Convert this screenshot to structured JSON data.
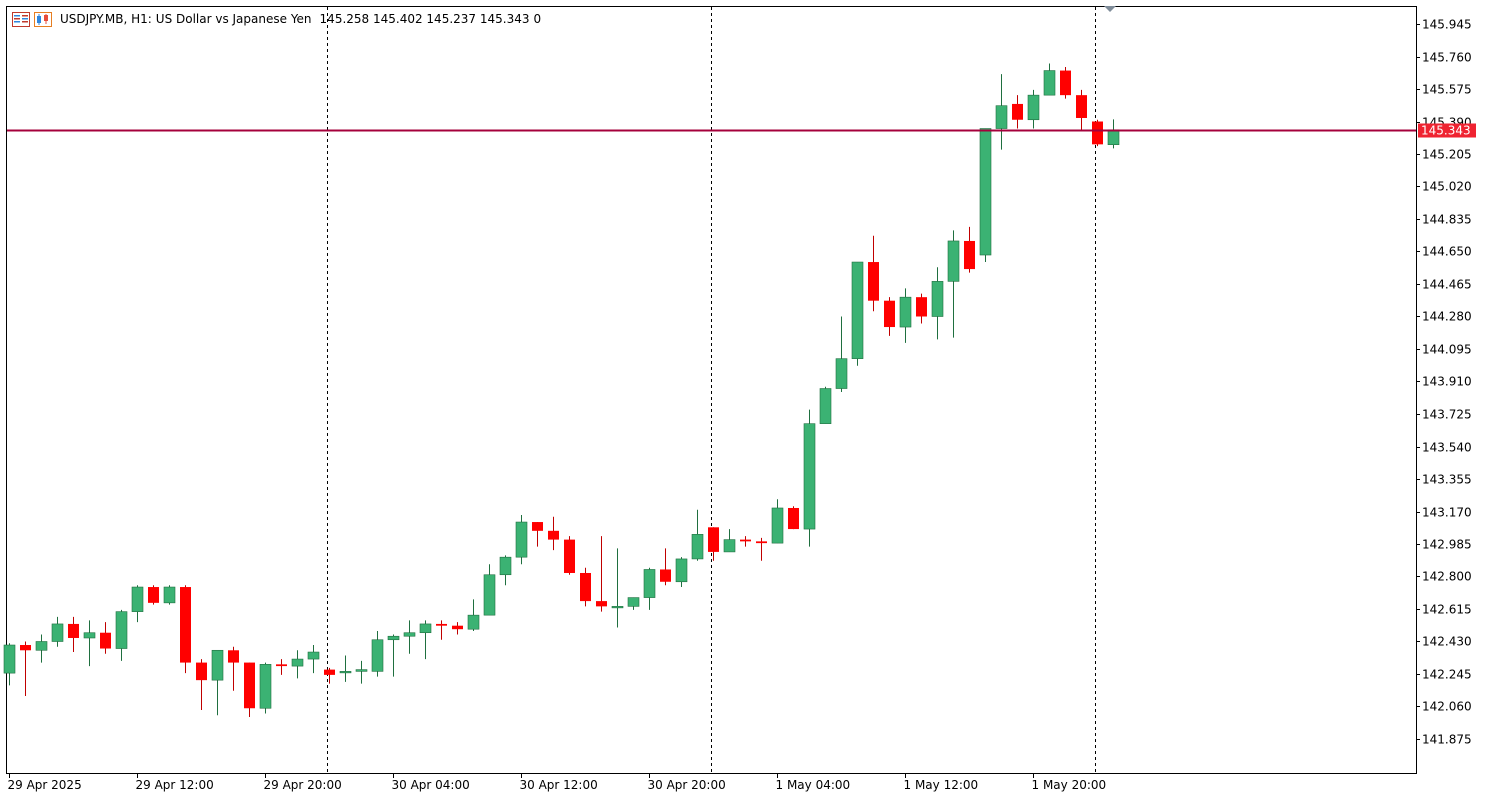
{
  "header": {
    "symbol": "USDJPY.MB, H1:",
    "description": "US Dollar vs Japanese Yen",
    "ohlc": "145.258 145.402 145.237 145.343",
    "volume": "0"
  },
  "colors": {
    "bull": "#3bb273",
    "bear": "#ff0000",
    "price_line": "#a5003b",
    "price_label_bg": "#ef2331",
    "grid": "#000000"
  },
  "icons": [
    "chart-menu-icon",
    "chart-type-icon"
  ],
  "chart_data": {
    "type": "candlestick",
    "ylim": [
      141.72,
      146.06
    ],
    "y_ticks": [
      "145.945",
      "145.760",
      "145.575",
      "145.390",
      "145.205",
      "145.020",
      "144.835",
      "144.650",
      "144.465",
      "144.280",
      "144.095",
      "143.910",
      "143.725",
      "143.540",
      "143.355",
      "143.170",
      "142.985",
      "142.800",
      "142.615",
      "142.430",
      "142.245",
      "142.060",
      "141.875"
    ],
    "x_labels": [
      "29 Apr 2025",
      "29 Apr 12:00",
      "29 Apr 20:00",
      "30 Apr 04:00",
      "30 Apr 12:00",
      "30 Apr 20:00",
      "1 May 04:00",
      "1 May 12:00",
      "1 May 20:00"
    ],
    "x_label_index": [
      0,
      8,
      16,
      24,
      32,
      40,
      48,
      56,
      64
    ],
    "day_separators_index": [
      20,
      44,
      68
    ],
    "current_price": 145.343,
    "current_price_label": "145.343",
    "candles": [
      {
        "o": 142.25,
        "h": 142.42,
        "l": 142.18,
        "c": 142.41
      },
      {
        "o": 142.41,
        "h": 142.43,
        "l": 142.12,
        "c": 142.38
      },
      {
        "o": 142.38,
        "h": 142.47,
        "l": 142.31,
        "c": 142.43
      },
      {
        "o": 142.43,
        "h": 142.57,
        "l": 142.4,
        "c": 142.53
      },
      {
        "o": 142.53,
        "h": 142.57,
        "l": 142.37,
        "c": 142.45
      },
      {
        "o": 142.45,
        "h": 142.55,
        "l": 142.29,
        "c": 142.48
      },
      {
        "o": 142.48,
        "h": 142.54,
        "l": 142.36,
        "c": 142.39
      },
      {
        "o": 142.39,
        "h": 142.61,
        "l": 142.32,
        "c": 142.6
      },
      {
        "o": 142.6,
        "h": 142.75,
        "l": 142.54,
        "c": 142.74
      },
      {
        "o": 142.74,
        "h": 142.75,
        "l": 142.64,
        "c": 142.65
      },
      {
        "o": 142.65,
        "h": 142.75,
        "l": 142.64,
        "c": 142.74
      },
      {
        "o": 142.74,
        "h": 142.75,
        "l": 142.25,
        "c": 142.31
      },
      {
        "o": 142.31,
        "h": 142.33,
        "l": 142.04,
        "c": 142.21
      },
      {
        "o": 142.21,
        "h": 142.38,
        "l": 142.01,
        "c": 142.38
      },
      {
        "o": 142.38,
        "h": 142.4,
        "l": 142.15,
        "c": 142.31
      },
      {
        "o": 142.31,
        "h": 142.31,
        "l": 142.0,
        "c": 142.05
      },
      {
        "o": 142.05,
        "h": 142.31,
        "l": 142.02,
        "c": 142.3
      },
      {
        "o": 142.3,
        "h": 142.33,
        "l": 142.24,
        "c": 142.29
      },
      {
        "o": 142.29,
        "h": 142.38,
        "l": 142.22,
        "c": 142.33
      },
      {
        "o": 142.33,
        "h": 142.41,
        "l": 142.25,
        "c": 142.37
      },
      {
        "o": 142.27,
        "h": 142.28,
        "l": 142.19,
        "c": 142.24
      },
      {
        "o": 142.26,
        "h": 142.35,
        "l": 142.2,
        "c": 142.26
      },
      {
        "o": 142.26,
        "h": 142.32,
        "l": 142.19,
        "c": 142.27
      },
      {
        "o": 142.26,
        "h": 142.49,
        "l": 142.23,
        "c": 142.44
      },
      {
        "o": 142.44,
        "h": 142.47,
        "l": 142.23,
        "c": 142.46
      },
      {
        "o": 142.46,
        "h": 142.55,
        "l": 142.36,
        "c": 142.48
      },
      {
        "o": 142.48,
        "h": 142.55,
        "l": 142.33,
        "c": 142.53
      },
      {
        "o": 142.53,
        "h": 142.55,
        "l": 142.44,
        "c": 142.52
      },
      {
        "o": 142.52,
        "h": 142.54,
        "l": 142.47,
        "c": 142.5
      },
      {
        "o": 142.5,
        "h": 142.67,
        "l": 142.49,
        "c": 142.58
      },
      {
        "o": 142.58,
        "h": 142.87,
        "l": 142.58,
        "c": 142.81
      },
      {
        "o": 142.81,
        "h": 142.92,
        "l": 142.75,
        "c": 142.91
      },
      {
        "o": 142.91,
        "h": 143.15,
        "l": 142.87,
        "c": 143.11
      },
      {
        "o": 143.11,
        "h": 143.11,
        "l": 142.97,
        "c": 143.06
      },
      {
        "o": 143.06,
        "h": 143.14,
        "l": 142.95,
        "c": 143.01
      },
      {
        "o": 143.01,
        "h": 143.03,
        "l": 142.81,
        "c": 142.82
      },
      {
        "o": 142.82,
        "h": 142.85,
        "l": 142.63,
        "c": 142.66
      },
      {
        "o": 142.66,
        "h": 143.03,
        "l": 142.6,
        "c": 142.63
      },
      {
        "o": 142.63,
        "h": 142.96,
        "l": 142.51,
        "c": 142.63
      },
      {
        "o": 142.63,
        "h": 142.68,
        "l": 142.61,
        "c": 142.68
      },
      {
        "o": 142.68,
        "h": 142.85,
        "l": 142.61,
        "c": 142.84
      },
      {
        "o": 142.84,
        "h": 142.96,
        "l": 142.75,
        "c": 142.77
      },
      {
        "o": 142.77,
        "h": 142.91,
        "l": 142.74,
        "c": 142.9
      },
      {
        "o": 142.9,
        "h": 143.18,
        "l": 142.89,
        "c": 143.04
      },
      {
        "o": 143.08,
        "h": 143.08,
        "l": 142.89,
        "c": 142.94
      },
      {
        "o": 142.94,
        "h": 143.07,
        "l": 142.94,
        "c": 143.01
      },
      {
        "o": 143.01,
        "h": 143.03,
        "l": 142.97,
        "c": 143.0
      },
      {
        "o": 143.0,
        "h": 143.02,
        "l": 142.89,
        "c": 142.99
      },
      {
        "o": 142.99,
        "h": 143.24,
        "l": 142.99,
        "c": 143.19
      },
      {
        "o": 143.19,
        "h": 143.2,
        "l": 143.07,
        "c": 143.07
      },
      {
        "o": 143.07,
        "h": 143.75,
        "l": 142.97,
        "c": 143.67
      },
      {
        "o": 143.67,
        "h": 143.88,
        "l": 143.67,
        "c": 143.87
      },
      {
        "o": 143.87,
        "h": 144.28,
        "l": 143.85,
        "c": 144.04
      },
      {
        "o": 144.04,
        "h": 144.59,
        "l": 144.0,
        "c": 144.59
      },
      {
        "o": 144.59,
        "h": 144.74,
        "l": 144.31,
        "c": 144.37
      },
      {
        "o": 144.37,
        "h": 144.39,
        "l": 144.17,
        "c": 144.22
      },
      {
        "o": 144.22,
        "h": 144.44,
        "l": 144.13,
        "c": 144.39
      },
      {
        "o": 144.39,
        "h": 144.41,
        "l": 144.24,
        "c": 144.28
      },
      {
        "o": 144.28,
        "h": 144.56,
        "l": 144.15,
        "c": 144.48
      },
      {
        "o": 144.48,
        "h": 144.77,
        "l": 144.16,
        "c": 144.71
      },
      {
        "o": 144.71,
        "h": 144.79,
        "l": 144.53,
        "c": 144.55
      },
      {
        "o": 144.63,
        "h": 145.35,
        "l": 144.59,
        "c": 145.35
      },
      {
        "o": 145.35,
        "h": 145.66,
        "l": 145.23,
        "c": 145.48
      },
      {
        "o": 145.49,
        "h": 145.54,
        "l": 145.35,
        "c": 145.4
      },
      {
        "o": 145.4,
        "h": 145.57,
        "l": 145.35,
        "c": 145.54
      },
      {
        "o": 145.54,
        "h": 145.72,
        "l": 145.54,
        "c": 145.68
      },
      {
        "o": 145.68,
        "h": 145.7,
        "l": 145.52,
        "c": 145.54
      },
      {
        "o": 145.54,
        "h": 145.57,
        "l": 145.34,
        "c": 145.41
      },
      {
        "o": 145.39,
        "h": 145.4,
        "l": 145.25,
        "c": 145.26
      },
      {
        "o": 145.258,
        "h": 145.402,
        "l": 145.237,
        "c": 145.343
      }
    ]
  }
}
